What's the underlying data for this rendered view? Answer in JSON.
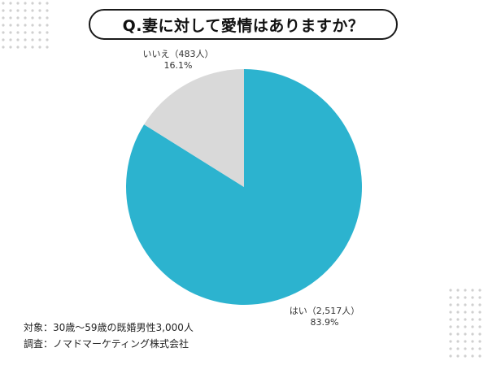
{
  "title": "Q.妻に対して愛情はありますか？",
  "chart_data": {
    "type": "pie",
    "title": "Q.妻に対して愛情はありますか？",
    "slices": [
      {
        "label": "はい",
        "count_text": "2,517人",
        "count": 2517,
        "percent_text": "83.9%",
        "percent": 83.9,
        "color": "#2cb3cf"
      },
      {
        "label": "いいえ",
        "count_text": "483人",
        "count": 483,
        "percent_text": "16.1%",
        "percent": 16.1,
        "color": "#d9d9d9"
      }
    ]
  },
  "labels": {
    "no": {
      "name_line": "いいえ（483人）",
      "percent_line": "16.1%"
    },
    "yes": {
      "name_line": "はい（2,517人）",
      "percent_line": "83.9%"
    }
  },
  "footnote": {
    "subjects": "対象：30歳～59歳の既婚男性3,000人",
    "survey": "調査：ノマドマーケティング株式会社"
  },
  "colors": {
    "accent": "#2cb3cf",
    "secondary": "#d9d9d9",
    "dots": "#d0d0d0"
  }
}
